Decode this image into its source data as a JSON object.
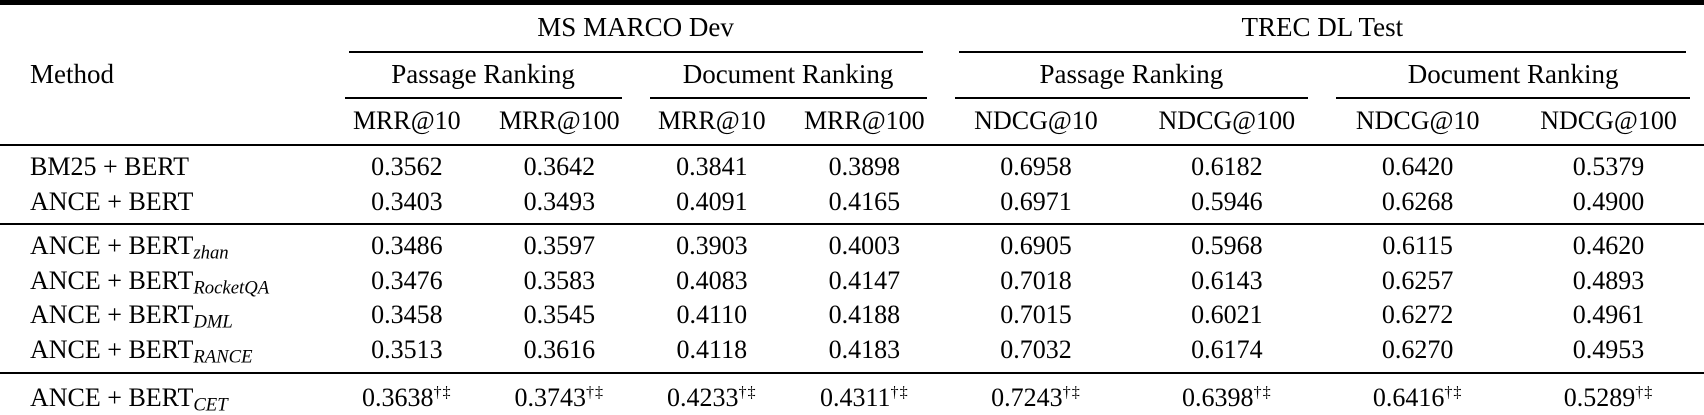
{
  "table": {
    "method_header": "Method",
    "groups": [
      {
        "label": "MS MARCO Dev"
      },
      {
        "label": "TREC DL Test"
      }
    ],
    "subgroups": [
      {
        "label": "Passage Ranking"
      },
      {
        "label": "Document Ranking"
      },
      {
        "label": "Passage Ranking"
      },
      {
        "label": "Document Ranking"
      }
    ],
    "metrics": [
      "MRR@10",
      "MRR@100",
      "MRR@10",
      "MRR@100",
      "NDCG@10",
      "NDCG@100",
      "NDCG@10",
      "NDCG@100"
    ],
    "rows": [
      {
        "method_base": "BM25 + BERT",
        "method_sub": "",
        "sup": "",
        "values": [
          "0.3562",
          "0.3642",
          "0.3841",
          "0.3898",
          "0.6958",
          "0.6182",
          "0.6420",
          "0.5379"
        ]
      },
      {
        "method_base": "ANCE + BERT",
        "method_sub": "",
        "sup": "",
        "values": [
          "0.3403",
          "0.3493",
          "0.4091",
          "0.4165",
          "0.6971",
          "0.5946",
          "0.6268",
          "0.4900"
        ]
      },
      {
        "method_base": "ANCE + BERT",
        "method_sub": "zhan",
        "sup": "",
        "values": [
          "0.3486",
          "0.3597",
          "0.3903",
          "0.4003",
          "0.6905",
          "0.5968",
          "0.6115",
          "0.4620"
        ]
      },
      {
        "method_base": "ANCE + BERT",
        "method_sub": "RocketQA",
        "sup": "",
        "values": [
          "0.3476",
          "0.3583",
          "0.4083",
          "0.4147",
          "0.7018",
          "0.6143",
          "0.6257",
          "0.4893"
        ]
      },
      {
        "method_base": "ANCE + BERT",
        "method_sub": "DML",
        "sup": "",
        "values": [
          "0.3458",
          "0.3545",
          "0.4110",
          "0.4188",
          "0.7015",
          "0.6021",
          "0.6272",
          "0.4961"
        ]
      },
      {
        "method_base": "ANCE + BERT",
        "method_sub": "RANCE",
        "sup": "",
        "values": [
          "0.3513",
          "0.3616",
          "0.4118",
          "0.4183",
          "0.7032",
          "0.6174",
          "0.6270",
          "0.4953"
        ]
      },
      {
        "method_base": "ANCE + BERT",
        "method_sub": "CET",
        "sup": "†‡",
        "values": [
          "0.3638",
          "0.3743",
          "0.4233",
          "0.4311",
          "0.7243",
          "0.6398",
          "0.6416",
          "0.5289"
        ]
      }
    ]
  }
}
